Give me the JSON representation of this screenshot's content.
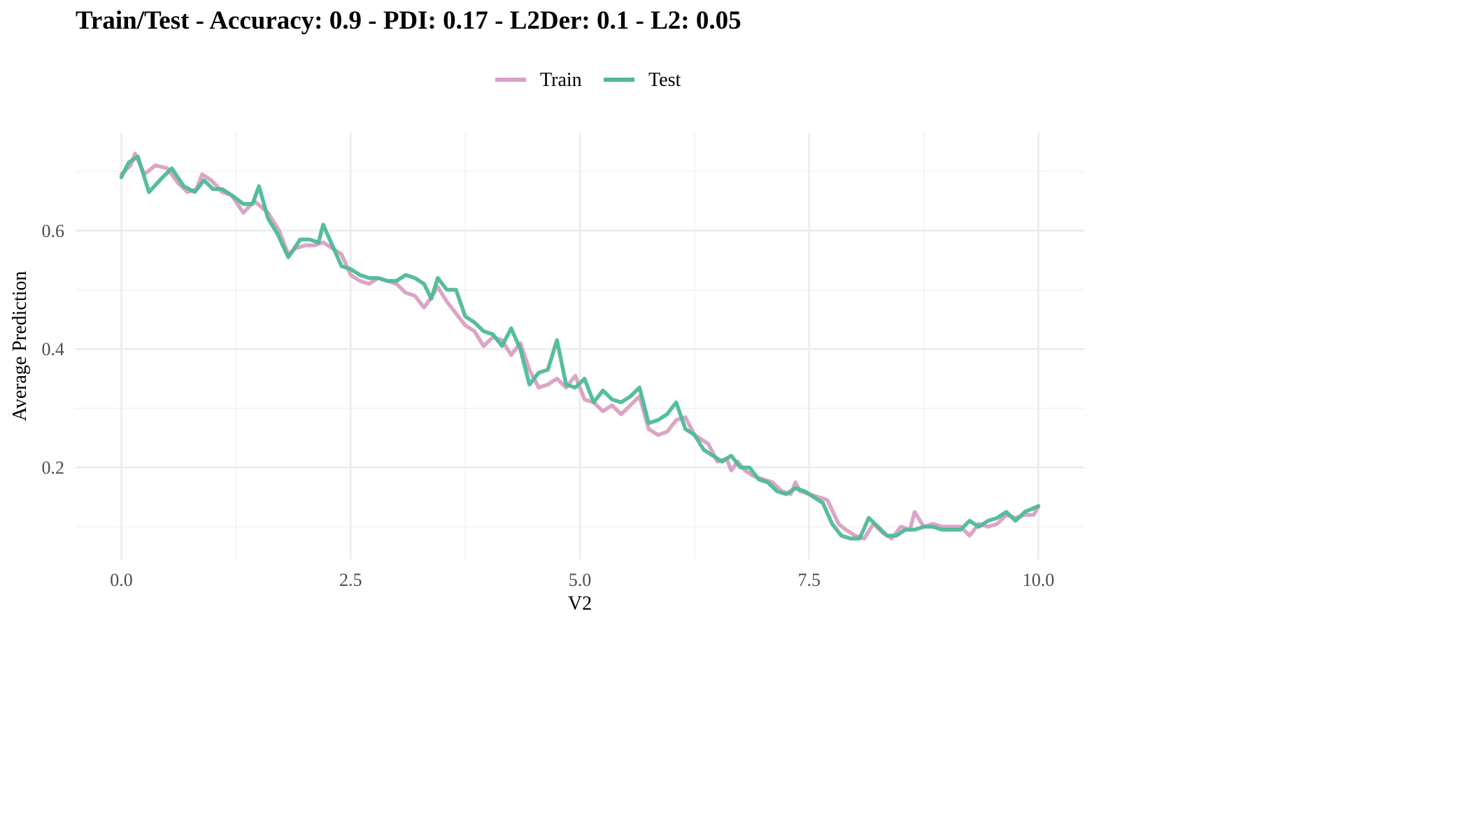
{
  "chart_data": {
    "type": "line",
    "title": "Train/Test - Accuracy: 0.9 - PDI: 0.17 - L2Der: 0.1 - L2: 0.05",
    "xlabel": "V2",
    "ylabel": "Average Prediction",
    "xlim": [
      -0.5,
      10.5
    ],
    "ylim": [
      0.045,
      0.765
    ],
    "xticks": [
      "0.0",
      "2.5",
      "5.0",
      "7.5",
      "10.0"
    ],
    "yticks": [
      "0.2",
      "0.4",
      "0.6"
    ],
    "grid": true,
    "legend_position": "top",
    "series": [
      {
        "name": "Train",
        "color": "#D9A0C4",
        "x": [
          0.0,
          0.1,
          0.15,
          0.25,
          0.37,
          0.5,
          0.62,
          0.72,
          0.82,
          0.88,
          0.98,
          1.1,
          1.2,
          1.33,
          1.45,
          1.6,
          1.72,
          1.82,
          1.9,
          2.0,
          2.1,
          2.2,
          2.3,
          2.4,
          2.5,
          2.6,
          2.7,
          2.8,
          2.9,
          3.0,
          3.1,
          3.2,
          3.3,
          3.37,
          3.45,
          3.55,
          3.65,
          3.75,
          3.85,
          3.95,
          4.05,
          4.15,
          4.25,
          4.35,
          4.45,
          4.55,
          4.65,
          4.75,
          4.85,
          4.95,
          5.05,
          5.15,
          5.25,
          5.35,
          5.45,
          5.55,
          5.65,
          5.75,
          5.85,
          5.95,
          6.05,
          6.15,
          6.25,
          6.35,
          6.4,
          6.5,
          6.6,
          6.65,
          6.72,
          6.8,
          6.9,
          7.0,
          7.1,
          7.2,
          7.3,
          7.35,
          7.4,
          7.5,
          7.6,
          7.7,
          7.82,
          7.9,
          8.0,
          8.1,
          8.2,
          8.3,
          8.4,
          8.5,
          8.6,
          8.65,
          8.75,
          8.85,
          8.95,
          9.05,
          9.15,
          9.25,
          9.35,
          9.45,
          9.55,
          9.65,
          9.75,
          9.85,
          9.95,
          10.0
        ],
        "values": [
          0.695,
          0.71,
          0.73,
          0.695,
          0.71,
          0.705,
          0.68,
          0.665,
          0.67,
          0.695,
          0.685,
          0.665,
          0.66,
          0.63,
          0.65,
          0.63,
          0.6,
          0.56,
          0.57,
          0.575,
          0.575,
          0.58,
          0.57,
          0.56,
          0.525,
          0.515,
          0.51,
          0.52,
          0.515,
          0.51,
          0.495,
          0.49,
          0.47,
          0.485,
          0.505,
          0.48,
          0.46,
          0.44,
          0.43,
          0.405,
          0.42,
          0.415,
          0.39,
          0.41,
          0.365,
          0.335,
          0.34,
          0.35,
          0.335,
          0.355,
          0.315,
          0.31,
          0.295,
          0.305,
          0.29,
          0.305,
          0.32,
          0.265,
          0.255,
          0.26,
          0.28,
          0.285,
          0.255,
          0.245,
          0.24,
          0.21,
          0.215,
          0.195,
          0.21,
          0.195,
          0.185,
          0.18,
          0.175,
          0.16,
          0.155,
          0.175,
          0.16,
          0.155,
          0.15,
          0.145,
          0.105,
          0.095,
          0.085,
          0.08,
          0.105,
          0.09,
          0.08,
          0.1,
          0.095,
          0.125,
          0.1,
          0.105,
          0.1,
          0.1,
          0.1,
          0.085,
          0.105,
          0.1,
          0.105,
          0.12,
          0.115,
          0.12,
          0.12,
          0.135
        ]
      },
      {
        "name": "Test",
        "color": "#4DBA97",
        "x": [
          0.0,
          0.08,
          0.18,
          0.3,
          0.45,
          0.55,
          0.68,
          0.8,
          0.9,
          1.0,
          1.1,
          1.2,
          1.33,
          1.43,
          1.5,
          1.6,
          1.7,
          1.82,
          1.95,
          2.05,
          2.15,
          2.2,
          2.3,
          2.4,
          2.5,
          2.6,
          2.7,
          2.8,
          2.9,
          3.0,
          3.1,
          3.2,
          3.3,
          3.38,
          3.45,
          3.55,
          3.65,
          3.75,
          3.85,
          3.95,
          4.05,
          4.15,
          4.25,
          4.35,
          4.45,
          4.55,
          4.65,
          4.75,
          4.85,
          4.95,
          5.05,
          5.15,
          5.25,
          5.35,
          5.45,
          5.55,
          5.65,
          5.75,
          5.85,
          5.95,
          6.05,
          6.15,
          6.25,
          6.35,
          6.45,
          6.55,
          6.65,
          6.75,
          6.85,
          6.95,
          7.05,
          7.15,
          7.25,
          7.35,
          7.45,
          7.55,
          7.65,
          7.75,
          7.85,
          7.95,
          8.05,
          8.15,
          8.25,
          8.35,
          8.45,
          8.55,
          8.65,
          8.75,
          8.85,
          8.95,
          9.05,
          9.15,
          9.25,
          9.35,
          9.45,
          9.55,
          9.65,
          9.75,
          9.85,
          10.0
        ],
        "values": [
          0.69,
          0.715,
          0.725,
          0.665,
          0.69,
          0.705,
          0.675,
          0.665,
          0.685,
          0.67,
          0.67,
          0.66,
          0.645,
          0.645,
          0.675,
          0.62,
          0.595,
          0.555,
          0.585,
          0.585,
          0.58,
          0.61,
          0.575,
          0.54,
          0.535,
          0.525,
          0.52,
          0.52,
          0.515,
          0.515,
          0.525,
          0.52,
          0.51,
          0.485,
          0.52,
          0.5,
          0.5,
          0.455,
          0.445,
          0.43,
          0.425,
          0.405,
          0.435,
          0.4,
          0.34,
          0.36,
          0.365,
          0.415,
          0.34,
          0.335,
          0.35,
          0.31,
          0.33,
          0.315,
          0.31,
          0.32,
          0.335,
          0.275,
          0.28,
          0.29,
          0.31,
          0.265,
          0.255,
          0.23,
          0.22,
          0.21,
          0.22,
          0.2,
          0.2,
          0.18,
          0.175,
          0.16,
          0.155,
          0.165,
          0.16,
          0.15,
          0.14,
          0.105,
          0.085,
          0.08,
          0.08,
          0.115,
          0.1,
          0.085,
          0.085,
          0.095,
          0.095,
          0.1,
          0.1,
          0.095,
          0.095,
          0.095,
          0.11,
          0.1,
          0.11,
          0.115,
          0.125,
          0.11,
          0.125,
          0.135
        ]
      }
    ]
  }
}
